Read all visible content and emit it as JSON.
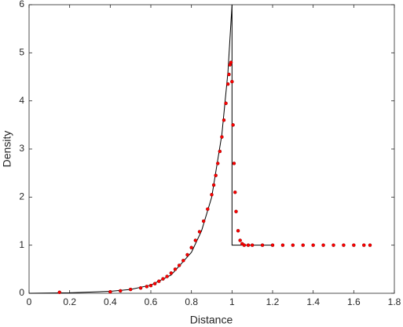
{
  "chart_data": {
    "type": "line",
    "xlabel": "Distance",
    "ylabel": "Density",
    "xlim": [
      0,
      1.8
    ],
    "xticks": [
      0,
      0.2,
      0.4,
      0.6,
      0.8,
      1,
      1.2,
      1.4,
      1.6,
      1.8
    ],
    "ylim": [
      0,
      6
    ],
    "yticks": [
      0,
      1,
      2,
      3,
      4,
      5,
      6
    ],
    "grid": false,
    "series": [
      {
        "type": "line",
        "color": "#000000",
        "x": [
          0,
          0.2,
          0.4,
          0.5,
          0.6,
          0.7,
          0.8,
          0.85,
          0.9,
          0.95,
          0.98,
          1.0,
          1.0,
          1.2
        ],
        "values": [
          0,
          0.01,
          0.04,
          0.08,
          0.17,
          0.38,
          0.85,
          1.3,
          2.0,
          3.3,
          4.6,
          6,
          1,
          1
        ]
      },
      {
        "type": "scatter",
        "color": "#ff0000",
        "x": [
          0.15,
          0.4,
          0.45,
          0.5,
          0.55,
          0.58,
          0.6,
          0.62,
          0.64,
          0.66,
          0.68,
          0.7,
          0.72,
          0.74,
          0.76,
          0.78,
          0.8,
          0.82,
          0.84,
          0.86,
          0.88,
          0.9,
          0.91,
          0.92,
          0.93,
          0.94,
          0.95,
          0.96,
          0.97,
          0.98,
          0.985,
          0.99,
          0.995,
          1.0,
          1.005,
          1.01,
          1.015,
          1.02,
          1.03,
          1.04,
          1.05,
          1.06,
          1.08,
          1.1,
          1.15,
          1.2,
          1.25,
          1.3,
          1.35,
          1.4,
          1.45,
          1.5,
          1.55,
          1.6,
          1.65,
          1.68
        ],
        "values": [
          0.02,
          0.03,
          0.05,
          0.08,
          0.11,
          0.14,
          0.16,
          0.2,
          0.25,
          0.3,
          0.35,
          0.42,
          0.5,
          0.58,
          0.68,
          0.8,
          0.95,
          1.1,
          1.28,
          1.5,
          1.75,
          2.05,
          2.25,
          2.45,
          2.7,
          2.95,
          3.25,
          3.6,
          3.95,
          4.35,
          4.55,
          4.75,
          4.8,
          4.4,
          3.5,
          2.7,
          2.1,
          1.7,
          1.3,
          1.1,
          1.03,
          1.0,
          1.0,
          1.0,
          1.0,
          1.0,
          1.0,
          1.0,
          1.0,
          1.0,
          1.0,
          1.0,
          1.0,
          1.0,
          1.0,
          1.0
        ]
      }
    ]
  }
}
